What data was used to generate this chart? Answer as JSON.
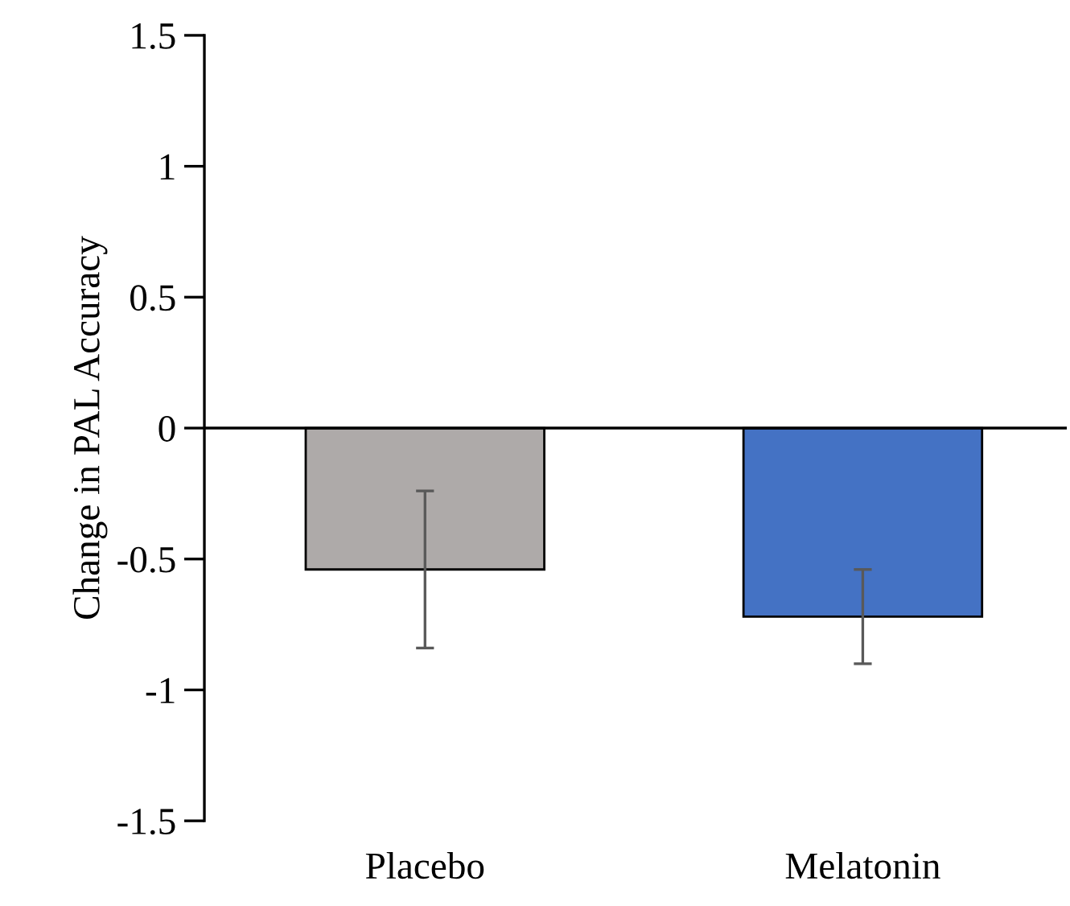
{
  "chart_data": {
    "type": "bar",
    "ylabel": "Change in PAL Accuracy",
    "categories": [
      "Placebo",
      "Melatonin"
    ],
    "values": [
      -0.54,
      -0.72
    ],
    "colors": [
      "#aeaaa9",
      "#4472c4"
    ],
    "errors": [
      0.3,
      0.18
    ],
    "ylim": [
      -1.5,
      1.5
    ],
    "yticks": [
      {
        "value": 1.5,
        "label": "1.5"
      },
      {
        "value": 1,
        "label": "1"
      },
      {
        "value": 0.5,
        "label": "0.5"
      },
      {
        "value": 0,
        "label": "0"
      },
      {
        "value": -0.5,
        "label": "-0.5"
      },
      {
        "value": -1,
        "label": "-1"
      },
      {
        "value": -1.5,
        "label": "-1.5"
      }
    ],
    "ref_lines": [
      {
        "axis": "y",
        "value": 0,
        "color": "#000000"
      }
    ],
    "grid": false,
    "legend": false
  }
}
